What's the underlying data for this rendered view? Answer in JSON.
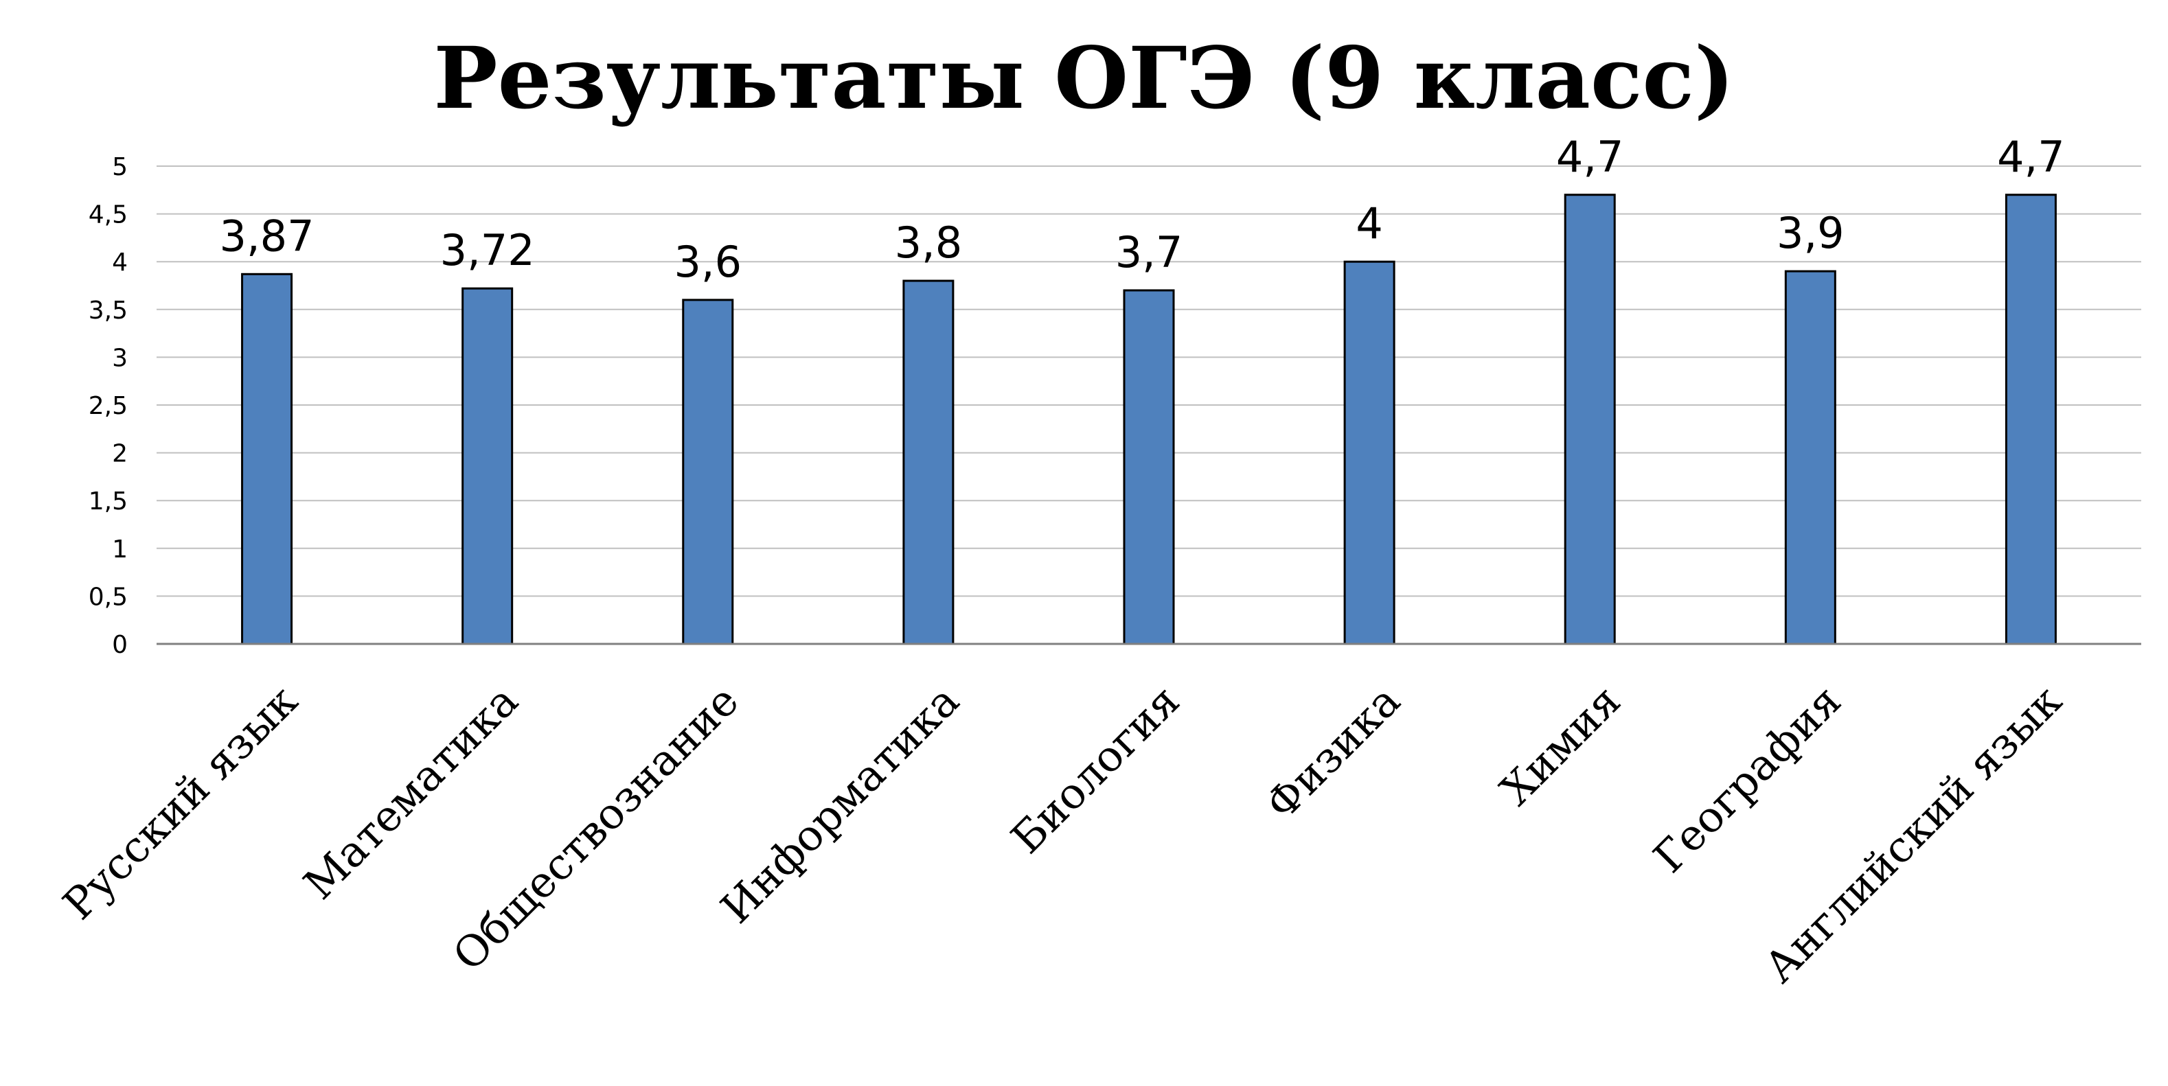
{
  "chart_data": {
    "type": "bar",
    "title": "Результаты ОГЭ (9 класс)",
    "categories": [
      "Русский язык",
      "Математика",
      "Обществознание",
      "Информатика",
      "Биология",
      "Физика",
      "Химия",
      "География",
      "Английский язык"
    ],
    "values": [
      3.87,
      3.72,
      3.6,
      3.8,
      3.7,
      4,
      4.7,
      3.9,
      4.7
    ],
    "data_labels": [
      "3,87",
      "3,72",
      "3,6",
      "3,8",
      "3,7",
      "4",
      "4,7",
      "3,9",
      "4,7"
    ],
    "y_ticks": [
      0,
      0.5,
      1,
      1.5,
      2,
      2.5,
      3,
      3.5,
      4,
      4.5,
      5
    ],
    "y_tick_labels": [
      "0",
      "0,5",
      "1",
      "1,5",
      "2",
      "2,5",
      "3",
      "3,5",
      "4",
      "4,5",
      "5"
    ],
    "ylim": [
      0,
      5
    ],
    "grid": true,
    "legend": false,
    "colors": {
      "bar_fill": "#4f81bd",
      "bar_stroke": "#000000",
      "grid": "#c0c0c0",
      "axis": "#808080"
    }
  }
}
